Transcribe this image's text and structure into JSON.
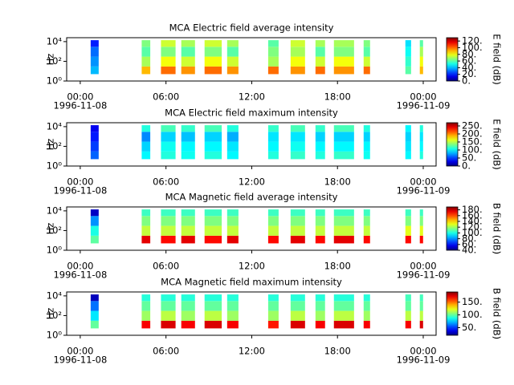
{
  "chart_data": [
    {
      "type": "spectrogram",
      "title": "MCA  Electric field average intensity",
      "y_label": "Hz",
      "y_log": true,
      "ylim": [
        1,
        25000
      ],
      "yticks": [
        {
          "value": 1,
          "label": "10⁰"
        },
        {
          "value": 100,
          "label": "10²"
        },
        {
          "value": 10000,
          "label": "10⁴"
        }
      ],
      "xlim": [
        -0.95,
        24.9
      ],
      "xticks": [
        {
          "value": 0,
          "label": "00:00",
          "date": "1996-11-08"
        },
        {
          "value": 6,
          "label": "06:00"
        },
        {
          "value": 12,
          "label": "12:00"
        },
        {
          "value": 18,
          "label": "18:00"
        },
        {
          "value": 24,
          "label": "00:00",
          "date": "1996-11-09"
        }
      ],
      "bands": [
        5,
        30,
        300,
        3000,
        14000
      ],
      "x": [
        [
          0.73,
          1.29
        ],
        [
          4.3,
          4.9
        ],
        [
          5.65,
          6.67
        ],
        [
          7.07,
          8.03
        ],
        [
          8.7,
          9.9
        ],
        [
          10.28,
          11.07
        ],
        [
          13.15,
          13.88
        ],
        [
          14.72,
          15.73
        ],
        [
          16.46,
          17.13
        ],
        [
          17.75,
          19.16
        ],
        [
          19.83,
          20.28
        ],
        [
          22.75,
          23.15
        ],
        [
          23.76,
          23.99
        ]
      ],
      "values": [
        [
          40,
          35,
          30,
          20
        ],
        [
          90,
          70,
          60,
          65
        ],
        [
          100,
          80,
          65,
          75
        ],
        [
          95,
          75,
          60,
          70
        ],
        [
          100,
          80,
          65,
          75
        ],
        [
          95,
          75,
          60,
          70
        ],
        [
          100,
          70,
          65,
          60
        ],
        [
          95,
          80,
          70,
          75
        ],
        [
          100,
          75,
          60,
          70
        ],
        [
          95,
          80,
          65,
          70
        ],
        [
          100,
          75,
          60,
          65
        ],
        [
          60,
          55,
          50,
          45
        ],
        [
          90,
          80,
          70,
          60
        ]
      ],
      "zlim": [
        0,
        130
      ],
      "zticks": [
        {
          "value": 0,
          "label": "0."
        },
        {
          "value": 20,
          "label": "20."
        },
        {
          "value": 40,
          "label": "40."
        },
        {
          "value": 60,
          "label": "60."
        },
        {
          "value": 80,
          "label": "80."
        },
        {
          "value": 100,
          "label": "100."
        },
        {
          "value": 120,
          "label": "120."
        }
      ],
      "z_label": "E field (dB)"
    },
    {
      "type": "spectrogram",
      "title": "MCA  Electric field maximum intensity",
      "y_label": "Hz",
      "y_log": true,
      "ylim": [
        1,
        25000
      ],
      "yticks": [
        {
          "value": 1,
          "label": "10⁰"
        },
        {
          "value": 100,
          "label": "10²"
        },
        {
          "value": 10000,
          "label": "10⁴"
        }
      ],
      "xlim": [
        -0.95,
        24.9
      ],
      "xticks": [
        {
          "value": 0,
          "label": "00:00",
          "date": "1996-11-08"
        },
        {
          "value": 6,
          "label": "06:00"
        },
        {
          "value": 12,
          "label": "12:00"
        },
        {
          "value": 18,
          "label": "18:00"
        },
        {
          "value": 24,
          "label": "00:00",
          "date": "1996-11-09"
        }
      ],
      "bands": [
        5,
        30,
        300,
        3000,
        14000
      ],
      "x": [
        [
          0.73,
          1.29
        ],
        [
          4.3,
          4.9
        ],
        [
          5.65,
          6.67
        ],
        [
          7.07,
          8.03
        ],
        [
          8.7,
          9.9
        ],
        [
          10.28,
          11.07
        ],
        [
          13.15,
          13.88
        ],
        [
          14.72,
          15.73
        ],
        [
          16.46,
          17.13
        ],
        [
          17.75,
          19.16
        ],
        [
          19.83,
          20.28
        ],
        [
          22.75,
          23.15
        ],
        [
          23.76,
          23.99
        ]
      ],
      "values": [
        [
          60,
          50,
          40,
          30
        ],
        [
          100,
          90,
          70,
          110
        ],
        [
          110,
          105,
          90,
          120
        ],
        [
          105,
          100,
          85,
          115
        ],
        [
          110,
          100,
          90,
          120
        ],
        [
          100,
          95,
          80,
          110
        ],
        [
          110,
          100,
          95,
          115
        ],
        [
          115,
          105,
          95,
          120
        ],
        [
          110,
          100,
          90,
          115
        ],
        [
          115,
          100,
          90,
          120
        ],
        [
          105,
          100,
          90,
          110
        ],
        [
          100,
          95,
          90,
          100
        ],
        [
          110,
          100,
          95,
          110
        ]
      ],
      "zlim": [
        0,
        270
      ],
      "zticks": [
        {
          "value": 0,
          "label": "0."
        },
        {
          "value": 50,
          "label": "50."
        },
        {
          "value": 100,
          "label": "100."
        },
        {
          "value": 150,
          "label": "150."
        },
        {
          "value": 200,
          "label": "200."
        },
        {
          "value": 250,
          "label": "250."
        }
      ],
      "z_label": "E field (dB)"
    },
    {
      "type": "spectrogram",
      "title": "MCA  Magnetic field average intensity",
      "y_label": "Hz",
      "y_log": true,
      "ylim": [
        1,
        25000
      ],
      "yticks": [
        {
          "value": 1,
          "label": "10⁰"
        },
        {
          "value": 100,
          "label": "10²"
        },
        {
          "value": 10000,
          "label": "10⁴"
        }
      ],
      "xlim": [
        -0.95,
        24.9
      ],
      "xticks": [
        {
          "value": 0,
          "label": "00:00",
          "date": "1996-11-08"
        },
        {
          "value": 6,
          "label": "06:00"
        },
        {
          "value": 12,
          "label": "12:00"
        },
        {
          "value": 18,
          "label": "18:00"
        },
        {
          "value": 24,
          "label": "00:00",
          "date": "1996-11-09"
        }
      ],
      "bands": [
        5,
        30,
        300,
        3000,
        14000
      ],
      "x": [
        [
          0.73,
          1.29
        ],
        [
          4.3,
          4.9
        ],
        [
          5.65,
          6.67
        ],
        [
          7.07,
          8.03
        ],
        [
          8.7,
          9.9
        ],
        [
          10.28,
          11.07
        ],
        [
          13.15,
          13.88
        ],
        [
          14.72,
          15.73
        ],
        [
          16.46,
          17.13
        ],
        [
          17.75,
          19.16
        ],
        [
          19.83,
          20.28
        ],
        [
          22.75,
          23.15
        ],
        [
          23.76,
          23.99
        ]
      ],
      "values": [
        [
          110,
          100,
          80,
          50
        ],
        [
          175,
          125,
          115,
          105
        ],
        [
          170,
          125,
          115,
          105
        ],
        [
          175,
          125,
          115,
          105
        ],
        [
          170,
          125,
          115,
          105
        ],
        [
          175,
          125,
          115,
          105
        ],
        [
          170,
          125,
          115,
          105
        ],
        [
          175,
          125,
          115,
          105
        ],
        [
          170,
          125,
          115,
          105
        ],
        [
          175,
          125,
          115,
          105
        ],
        [
          170,
          125,
          115,
          105
        ],
        [
          170,
          130,
          115,
          105
        ],
        [
          170,
          130,
          115,
          105
        ]
      ],
      "zlim": [
        40,
        190
      ],
      "zticks": [
        {
          "value": 40,
          "label": "40."
        },
        {
          "value": 60,
          "label": "60."
        },
        {
          "value": 80,
          "label": "80."
        },
        {
          "value": 100,
          "label": "100."
        },
        {
          "value": 120,
          "label": "120."
        },
        {
          "value": 140,
          "label": "140."
        },
        {
          "value": 160,
          "label": "160."
        },
        {
          "value": 180,
          "label": "180."
        }
      ],
      "z_label": "B field (dB)"
    },
    {
      "type": "spectrogram",
      "title": "MCA  Magnetic field maximum intensity",
      "y_label": "Hz",
      "y_log": true,
      "ylim": [
        1,
        25000
      ],
      "yticks": [
        {
          "value": 1,
          "label": "10⁰"
        },
        {
          "value": 100,
          "label": "10²"
        },
        {
          "value": 10000,
          "label": "10⁴"
        }
      ],
      "xlim": [
        -0.95,
        24.9
      ],
      "xticks": [
        {
          "value": 0,
          "label": "00:00",
          "date": "1996-11-08"
        },
        {
          "value": 6,
          "label": "06:00"
        },
        {
          "value": 12,
          "label": "12:00"
        },
        {
          "value": 18,
          "label": "18:00"
        },
        {
          "value": 24,
          "label": "00:00",
          "date": "1996-11-09"
        }
      ],
      "bands": [
        5,
        30,
        300,
        3000,
        14000
      ],
      "x": [
        [
          0.73,
          1.29
        ],
        [
          4.3,
          4.9
        ],
        [
          5.65,
          6.67
        ],
        [
          7.07,
          8.03
        ],
        [
          8.7,
          9.9
        ],
        [
          10.28,
          11.07
        ],
        [
          13.15,
          13.88
        ],
        [
          14.72,
          15.73
        ],
        [
          16.46,
          17.13
        ],
        [
          17.75,
          19.16
        ],
        [
          19.83,
          20.28
        ],
        [
          22.75,
          23.15
        ],
        [
          23.76,
          23.99
        ]
      ],
      "values": [
        [
          100,
          80,
          60,
          30
        ],
        [
          170,
          110,
          100,
          90
        ],
        [
          175,
          115,
          100,
          90
        ],
        [
          170,
          110,
          100,
          90
        ],
        [
          175,
          115,
          100,
          90
        ],
        [
          170,
          110,
          100,
          90
        ],
        [
          165,
          110,
          100,
          90
        ],
        [
          175,
          115,
          100,
          90
        ],
        [
          170,
          110,
          100,
          90
        ],
        [
          175,
          115,
          100,
          90
        ],
        [
          170,
          110,
          100,
          90
        ],
        [
          170,
          115,
          100,
          95
        ],
        [
          175,
          115,
          100,
          95
        ]
      ],
      "zlim": [
        20,
        190
      ],
      "zticks": [
        {
          "value": 50,
          "label": "50."
        },
        {
          "value": 100,
          "label": "100."
        },
        {
          "value": 150,
          "label": "150."
        }
      ],
      "z_label": "B field (dB)"
    }
  ]
}
